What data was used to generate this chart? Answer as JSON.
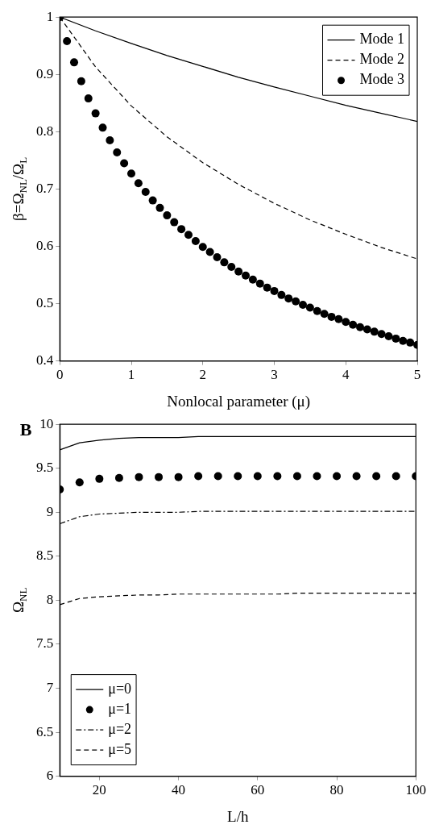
{
  "chart_data": [
    {
      "type": "line",
      "xlabel": "Nonlocal parameter (μ)",
      "ylabel": "β=Ω$_{NL}$/Ω$_{L}$",
      "xlim": [
        0,
        5
      ],
      "xticks": [
        0,
        1,
        2,
        3,
        4,
        5
      ],
      "ylim": [
        0.4,
        1
      ],
      "yticks": [
        0.4,
        0.5,
        0.6,
        0.7,
        0.8,
        0.9,
        1
      ],
      "grid": false,
      "legend": "top right",
      "series": [
        {
          "name": "Mode 1",
          "color": "#000000",
          "line_style": "solid",
          "marker": "none",
          "x": [
            0,
            0.5,
            1,
            1.5,
            2,
            2.5,
            3,
            3.5,
            4,
            4.5,
            5
          ],
          "values": [
            1,
            0.976,
            0.954,
            0.933,
            0.914,
            0.895,
            0.878,
            0.862,
            0.846,
            0.832,
            0.818
          ]
        },
        {
          "name": "Mode 2",
          "color": "#000000",
          "line_style": "dashed",
          "marker": "none",
          "x": [
            0,
            0.5,
            1,
            1.5,
            2,
            2.5,
            3,
            3.5,
            4,
            4.5,
            5
          ],
          "values": [
            1,
            0.913,
            0.845,
            0.791,
            0.746,
            0.708,
            0.675,
            0.646,
            0.621,
            0.598,
            0.578
          ]
        },
        {
          "name": "Mode 3",
          "type": "scatter",
          "color": "#000000",
          "marker": "circle",
          "x": [
            0,
            0.1,
            0.2,
            0.3,
            0.4,
            0.5,
            0.6,
            0.7,
            0.8,
            0.9,
            1,
            1.1,
            1.2,
            1.3,
            1.4,
            1.5,
            1.6,
            1.7,
            1.8,
            1.9,
            2,
            2.1,
            2.2,
            2.3,
            2.4,
            2.5,
            2.6,
            2.7,
            2.8,
            2.9,
            3,
            3.1,
            3.2,
            3.3,
            3.4,
            3.5,
            3.6,
            3.7,
            3.8,
            3.9,
            4,
            4.1,
            4.2,
            4.3,
            4.4,
            4.5,
            4.6,
            4.7,
            4.8,
            4.9,
            5
          ],
          "values": [
            1,
            0.958,
            0.921,
            0.888,
            0.858,
            0.832,
            0.807,
            0.785,
            0.764,
            0.745,
            0.727,
            0.71,
            0.695,
            0.68,
            0.667,
            0.654,
            0.642,
            0.63,
            0.62,
            0.609,
            0.599,
            0.59,
            0.581,
            0.572,
            0.564,
            0.556,
            0.549,
            0.542,
            0.535,
            0.528,
            0.522,
            0.515,
            0.509,
            0.504,
            0.498,
            0.493,
            0.487,
            0.482,
            0.477,
            0.473,
            0.468,
            0.463,
            0.459,
            0.455,
            0.451,
            0.447,
            0.443,
            0.439,
            0.435,
            0.432,
            0.428
          ]
        }
      ]
    },
    {
      "type": "line",
      "title": "B",
      "xlabel": "L/h",
      "ylabel": "Ω$_{NL}$",
      "xlim": [
        10,
        100
      ],
      "xticks": [
        20,
        40,
        60,
        80,
        100
      ],
      "ylim": [
        6,
        10
      ],
      "yticks": [
        6,
        6.5,
        7,
        7.5,
        8,
        8.5,
        9,
        9.5,
        10
      ],
      "grid": false,
      "legend": "bottom left",
      "series": [
        {
          "name": "μ=0",
          "color": "#000000",
          "line_style": "solid",
          "marker": "none",
          "x": [
            10,
            15,
            20,
            25,
            30,
            35,
            40,
            45,
            50,
            55,
            60,
            65,
            70,
            75,
            80,
            85,
            90,
            95,
            100
          ],
          "values": [
            9.71,
            9.79,
            9.82,
            9.84,
            9.85,
            9.85,
            9.85,
            9.86,
            9.86,
            9.86,
            9.86,
            9.86,
            9.86,
            9.86,
            9.86,
            9.86,
            9.86,
            9.86,
            9.86
          ]
        },
        {
          "name": "μ=1",
          "type": "scatter",
          "color": "#000000",
          "marker": "circle",
          "x": [
            10,
            15,
            20,
            25,
            30,
            35,
            40,
            45,
            50,
            55,
            60,
            65,
            70,
            75,
            80,
            85,
            90,
            95,
            100
          ],
          "values": [
            9.26,
            9.34,
            9.38,
            9.39,
            9.4,
            9.4,
            9.4,
            9.41,
            9.41,
            9.41,
            9.41,
            9.41,
            9.41,
            9.41,
            9.41,
            9.41,
            9.41,
            9.41,
            9.41
          ]
        },
        {
          "name": "μ=2",
          "color": "#000000",
          "line_style": "dashdot",
          "marker": "none",
          "x": [
            10,
            15,
            20,
            25,
            30,
            35,
            40,
            45,
            50,
            55,
            60,
            65,
            70,
            75,
            80,
            85,
            90,
            95,
            100
          ],
          "values": [
            8.87,
            8.95,
            8.98,
            8.99,
            9.0,
            9.0,
            9.0,
            9.01,
            9.01,
            9.01,
            9.01,
            9.01,
            9.01,
            9.01,
            9.01,
            9.01,
            9.01,
            9.01,
            9.01
          ]
        },
        {
          "name": "μ=5",
          "color": "#000000",
          "line_style": "dashed",
          "marker": "none",
          "x": [
            10,
            15,
            20,
            25,
            30,
            35,
            40,
            45,
            50,
            55,
            60,
            65,
            70,
            75,
            80,
            85,
            90,
            95,
            100
          ],
          "values": [
            7.95,
            8.02,
            8.04,
            8.05,
            8.06,
            8.06,
            8.07,
            8.07,
            8.07,
            8.07,
            8.07,
            8.07,
            8.08,
            8.08,
            8.08,
            8.08,
            8.08,
            8.08,
            8.08
          ]
        }
      ]
    }
  ]
}
